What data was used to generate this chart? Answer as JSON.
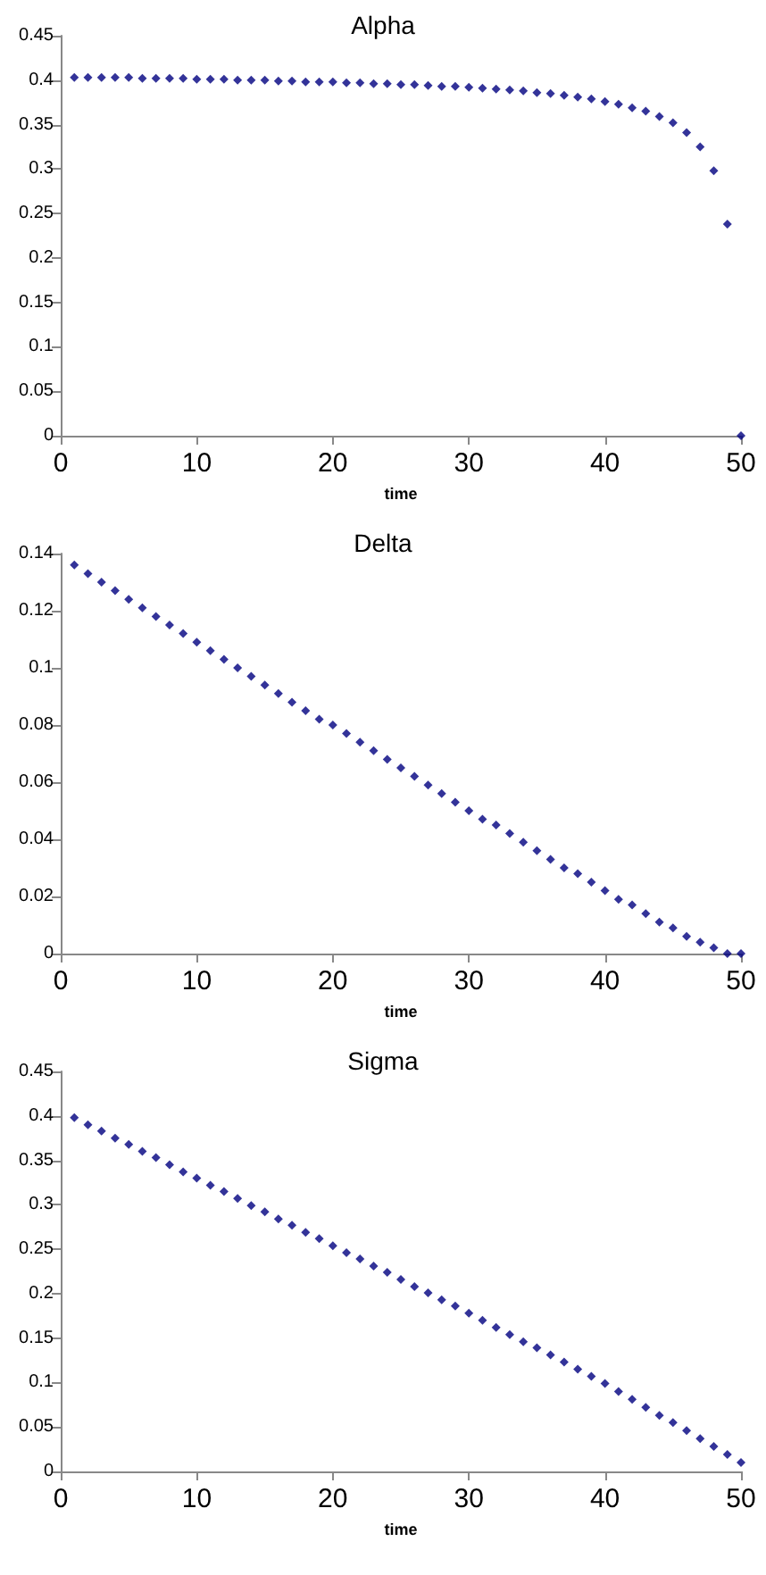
{
  "chart_data": [
    {
      "type": "scatter",
      "title": "Alpha",
      "xlabel": "time",
      "marker": "diamond",
      "grid": false,
      "xlim": [
        0,
        50
      ],
      "xticks": [
        0,
        10,
        20,
        30,
        40,
        50
      ],
      "ylim": [
        0,
        0.45
      ],
      "yticks": [
        0,
        0.05,
        0.1,
        0.15,
        0.2,
        0.25,
        0.3,
        0.35,
        0.4,
        0.45
      ],
      "x": [
        1,
        2,
        3,
        4,
        5,
        6,
        7,
        8,
        9,
        10,
        11,
        12,
        13,
        14,
        15,
        16,
        17,
        18,
        19,
        20,
        21,
        22,
        23,
        24,
        25,
        26,
        27,
        28,
        29,
        30,
        31,
        32,
        33,
        34,
        35,
        36,
        37,
        38,
        39,
        40,
        41,
        42,
        43,
        44,
        45,
        46,
        47,
        48,
        49,
        50
      ],
      "series": [
        {
          "color": "#000080",
          "values": [
            0.403,
            0.403,
            0.403,
            0.403,
            0.403,
            0.402,
            0.402,
            0.402,
            0.402,
            0.401,
            0.401,
            0.401,
            0.4,
            0.4,
            0.4,
            0.399,
            0.399,
            0.398,
            0.398,
            0.398,
            0.397,
            0.397,
            0.396,
            0.396,
            0.395,
            0.395,
            0.394,
            0.393,
            0.393,
            0.392,
            0.391,
            0.39,
            0.389,
            0.388,
            0.386,
            0.385,
            0.383,
            0.381,
            0.379,
            0.376,
            0.373,
            0.369,
            0.365,
            0.359,
            0.352,
            0.341,
            0.325,
            0.298,
            0.238,
            0
          ]
        }
      ]
    },
    {
      "type": "scatter",
      "title": "Delta",
      "xlabel": "time",
      "marker": "diamond",
      "grid": false,
      "xlim": [
        0,
        50
      ],
      "xticks": [
        0,
        10,
        20,
        30,
        40,
        50
      ],
      "ylim": [
        0,
        0.14
      ],
      "yticks": [
        0,
        0.02,
        0.04,
        0.06,
        0.08,
        0.1,
        0.12,
        0.14
      ],
      "x": [
        1,
        2,
        3,
        4,
        5,
        6,
        7,
        8,
        9,
        10,
        11,
        12,
        13,
        14,
        15,
        16,
        17,
        18,
        19,
        20,
        21,
        22,
        23,
        24,
        25,
        26,
        27,
        28,
        29,
        30,
        31,
        32,
        33,
        34,
        35,
        36,
        37,
        38,
        39,
        40,
        41,
        42,
        43,
        44,
        45,
        46,
        47,
        48,
        49,
        50
      ],
      "series": [
        {
          "color": "#000080",
          "values": [
            0.136,
            0.133,
            0.13,
            0.127,
            0.124,
            0.121,
            0.118,
            0.115,
            0.112,
            0.109,
            0.106,
            0.103,
            0.1,
            0.097,
            0.094,
            0.091,
            0.088,
            0.085,
            0.082,
            0.08,
            0.077,
            0.074,
            0.071,
            0.068,
            0.065,
            0.062,
            0.059,
            0.056,
            0.053,
            0.05,
            0.047,
            0.045,
            0.042,
            0.039,
            0.036,
            0.033,
            0.03,
            0.028,
            0.025,
            0.022,
            0.019,
            0.017,
            0.014,
            0.011,
            0.009,
            0.006,
            0.004,
            0.002,
            0,
            0
          ]
        }
      ]
    },
    {
      "type": "scatter",
      "title": "Sigma",
      "xlabel": "time",
      "marker": "diamond",
      "grid": false,
      "xlim": [
        0,
        50
      ],
      "xticks": [
        0,
        10,
        20,
        30,
        40,
        50
      ],
      "ylim": [
        0,
        0.45
      ],
      "yticks": [
        0,
        0.05,
        0.1,
        0.15,
        0.2,
        0.25,
        0.3,
        0.35,
        0.4,
        0.45
      ],
      "x": [
        1,
        2,
        3,
        4,
        5,
        6,
        7,
        8,
        9,
        10,
        11,
        12,
        13,
        14,
        15,
        16,
        17,
        18,
        19,
        20,
        21,
        22,
        23,
        24,
        25,
        26,
        27,
        28,
        29,
        30,
        31,
        32,
        33,
        34,
        35,
        36,
        37,
        38,
        39,
        40,
        41,
        42,
        43,
        44,
        45,
        46,
        47,
        48,
        49,
        50
      ],
      "series": [
        {
          "color": "#000080",
          "values": [
            0.398,
            0.39,
            0.383,
            0.375,
            0.368,
            0.36,
            0.353,
            0.345,
            0.337,
            0.33,
            0.322,
            0.315,
            0.307,
            0.299,
            0.292,
            0.284,
            0.277,
            0.269,
            0.262,
            0.254,
            0.246,
            0.239,
            0.231,
            0.224,
            0.216,
            0.208,
            0.201,
            0.193,
            0.186,
            0.178,
            0.17,
            0.162,
            0.154,
            0.146,
            0.139,
            0.131,
            0.123,
            0.115,
            0.107,
            0.099,
            0.09,
            0.081,
            0.072,
            0.063,
            0.055,
            0.046,
            0.037,
            0.028,
            0.019,
            0.01
          ]
        }
      ]
    }
  ]
}
